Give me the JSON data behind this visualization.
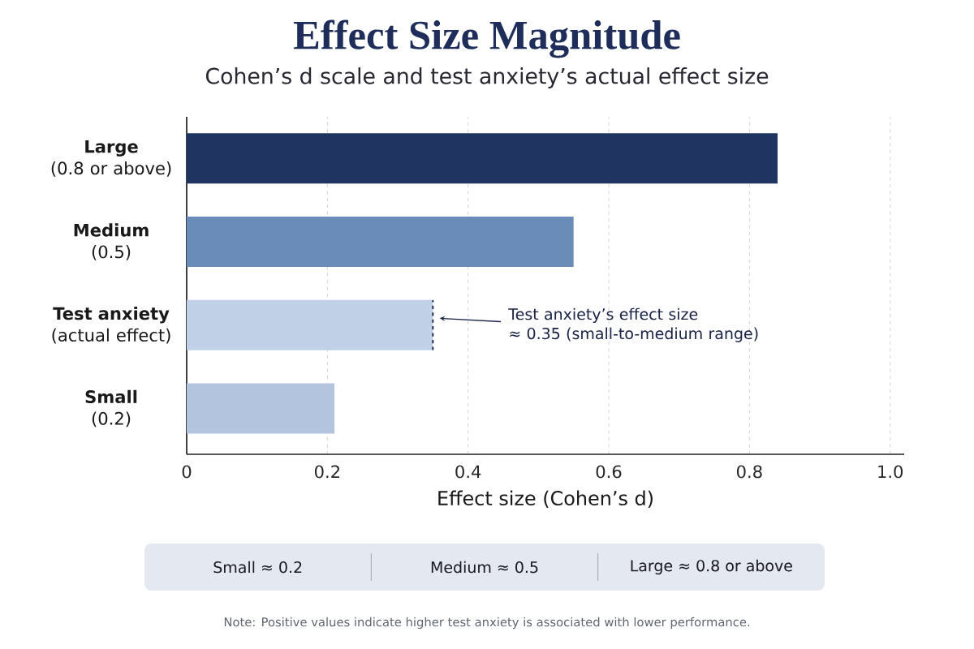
{
  "chart_data": {
    "type": "bar",
    "orientation": "horizontal",
    "title": "Effect Size Magnitude",
    "subtitle": "Cohen’s d scale and test anxiety’s actual effect size",
    "xlabel": "Effect size (Cohen’s d)",
    "categories": [
      "**Large**\n(0.8 or above)",
      "**Medium**\n(0.5)",
      "**Test anxiety**\n(actual effect)",
      "**Small**\n(0.2)"
    ],
    "values": [
      0.84,
      0.55,
      0.35,
      0.21
    ],
    "colors": [
      "#1f3461",
      "#6a8cb8",
      "#c0d0e6",
      "#b3c5de"
    ],
    "xlim": [
      0,
      1.02
    ],
    "xticks": [
      0,
      0.2,
      0.4,
      0.6,
      0.8,
      {
        "value": 1,
        "label": "1.0"
      }
    ],
    "grid": "x",
    "annotations": [
      "Test anxiety’s effect size\n≈ 0.35 (small-to-medium range)",
      "Small  ≈ 0.2",
      "Medium  ≈ 0.5",
      "Large  ≈ 0.8 or above",
      "Note: Positive values indicate higher test anxiety is associated with lower performance."
    ]
  }
}
